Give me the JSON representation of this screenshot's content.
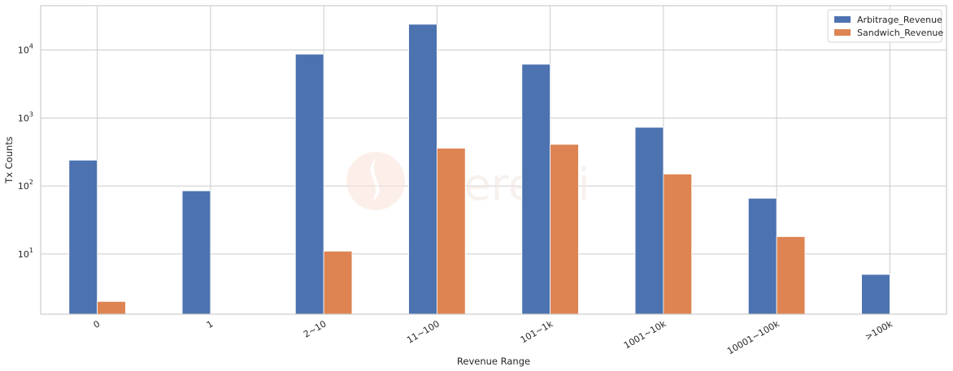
{
  "chart_data": {
    "type": "bar",
    "scale": "log",
    "grid": true,
    "legend_position": "top-right",
    "xlabel": "Revenue Range",
    "ylabel": "Tx Counts",
    "categories": [
      "0",
      "1",
      "2~10",
      "11~100",
      "101~1k",
      "1001~10k",
      "10001~100k",
      ">100k"
    ],
    "series": [
      {
        "name": "Arbitrage_Revenue",
        "color": "#4c72b0",
        "values": [
          240,
          85,
          8700,
          24000,
          6200,
          730,
          66,
          5
        ]
      },
      {
        "name": "Sandwich_Revenue",
        "color": "#dd8452",
        "values": [
          2,
          null,
          11,
          360,
          410,
          150,
          18,
          null
        ]
      }
    ],
    "ylim": [
      1.3,
      45000
    ],
    "y_ticks": [
      {
        "value": 10,
        "base": "10",
        "exp": "1"
      },
      {
        "value": 100,
        "base": "10",
        "exp": "2"
      },
      {
        "value": 1000,
        "base": "10",
        "exp": "3"
      },
      {
        "value": 10000,
        "base": "10",
        "exp": "4"
      }
    ]
  },
  "watermark": {
    "text": "tigeremi",
    "color": "#fbe3d9"
  }
}
